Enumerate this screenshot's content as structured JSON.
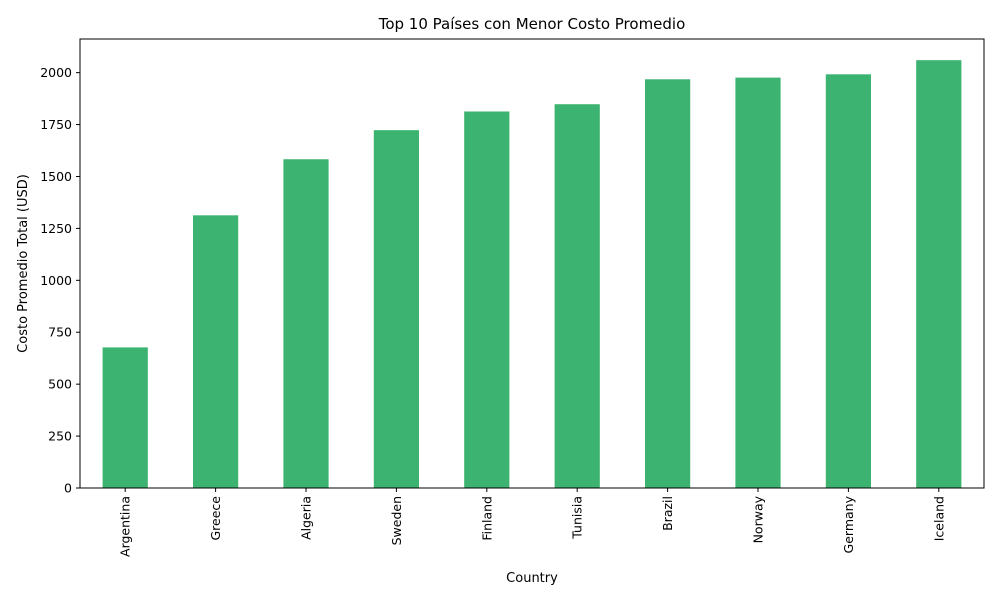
{
  "chart_data": {
    "type": "bar",
    "title": "Top 10 Países con Menor Costo Promedio",
    "xlabel": "Country",
    "ylabel": "Costo Promedio Total (USD)",
    "categories": [
      "Argentina",
      "Greece",
      "Algeria",
      "Sweden",
      "Finland",
      "Tunisia",
      "Brazil",
      "Norway",
      "Germany",
      "Iceland"
    ],
    "values": [
      677,
      1313,
      1583,
      1723,
      1813,
      1848,
      1968,
      1976,
      1992,
      2060
    ],
    "ylim": [
      0,
      2162
    ],
    "yticks": [
      0,
      250,
      500,
      750,
      1000,
      1250,
      1500,
      1750,
      2000
    ],
    "bar_color": "#3cb371",
    "grid": false,
    "legend": "none"
  }
}
